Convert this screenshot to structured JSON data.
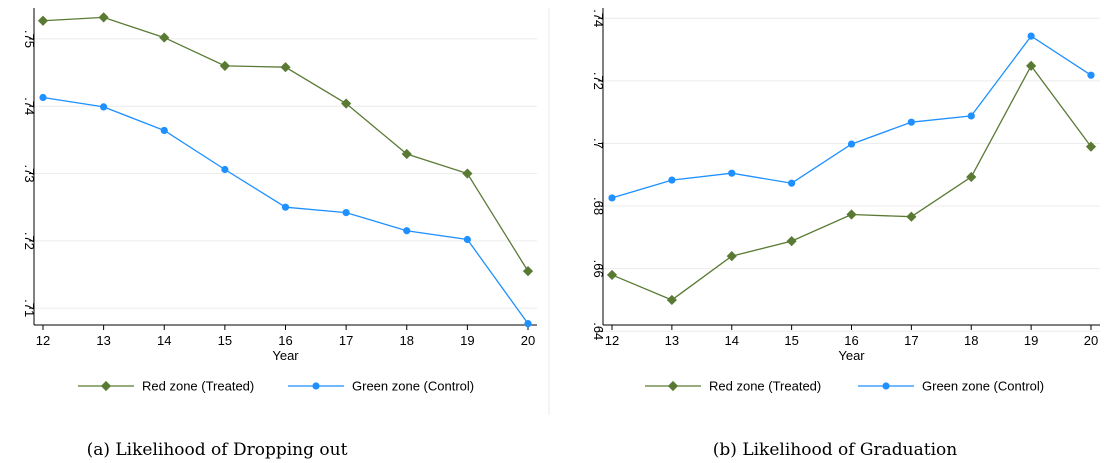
{
  "chart_data": [
    {
      "type": "line",
      "caption": "(a) Likelihood of Dropping out",
      "xlabel": "Year",
      "ylabel": "",
      "x": [
        12,
        13,
        14,
        15,
        16,
        17,
        18,
        19,
        20
      ],
      "x_ticks": [
        "12",
        "13",
        "14",
        "15",
        "16",
        "17",
        "18",
        "19",
        "20"
      ],
      "ylim": [
        0.7075,
        0.754
      ],
      "y_ticks": [
        0.71,
        0.72,
        0.73,
        0.74,
        0.75
      ],
      "y_tick_labels": [
        ".71",
        ".72",
        ".73",
        ".74",
        ".75"
      ],
      "grid": true,
      "legend_position": "bottom",
      "series": [
        {
          "name": "Red zone (Treated)",
          "color": "#5a7a34",
          "marker": "diamond",
          "values": [
            0.7527,
            0.7532,
            0.7502,
            0.746,
            0.7458,
            0.7404,
            0.7329,
            0.73,
            0.7155
          ]
        },
        {
          "name": "Green zone (Control)",
          "color": "#1e90ff",
          "marker": "circle",
          "values": [
            0.7413,
            0.7399,
            0.7364,
            0.7306,
            0.725,
            0.7242,
            0.7215,
            0.7202,
            0.7077
          ]
        }
      ]
    },
    {
      "type": "line",
      "caption": "(b) Likelihood of Graduation",
      "xlabel": "Year",
      "ylabel": "",
      "x": [
        12,
        13,
        14,
        15,
        16,
        17,
        18,
        19,
        20
      ],
      "x_ticks": [
        "12",
        "13",
        "14",
        "15",
        "16",
        "17",
        "18",
        "19",
        "20"
      ],
      "ylim": [
        0.642,
        0.742
      ],
      "y_ticks": [
        0.64,
        0.66,
        0.68,
        0.7,
        0.72,
        0.74
      ],
      "y_tick_labels": [
        ".64",
        ".66",
        ".68",
        ".7",
        ".72",
        ".74"
      ],
      "grid": true,
      "legend_position": "bottom",
      "series": [
        {
          "name": "Red zone (Treated)",
          "color": "#5a7a34",
          "marker": "diamond",
          "values": [
            0.658,
            0.65,
            0.664,
            0.6688,
            0.6773,
            0.6766,
            0.6893,
            0.7248,
            0.699
          ]
        },
        {
          "name": "Green zone (Control)",
          "color": "#1e90ff",
          "marker": "circle",
          "values": [
            0.6826,
            0.6883,
            0.6905,
            0.6873,
            0.6998,
            0.7068,
            0.7088,
            0.7343,
            0.7218
          ]
        }
      ]
    }
  ]
}
